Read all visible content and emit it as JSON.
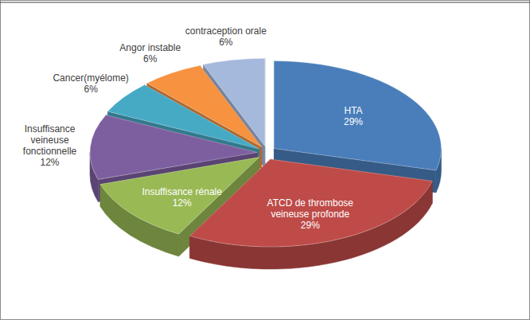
{
  "chart_data": {
    "type": "pie",
    "categories": [
      "HTA",
      "ATCD de thrombose veineuse profonde",
      "Insuffisance rénale",
      "Insuffisance veineuse fonctionnelle",
      "Cancer(myélome)",
      "Angor instable",
      "contraception orale"
    ],
    "values": [
      29,
      29,
      12,
      12,
      6,
      6,
      6
    ],
    "value_labels": [
      "29%",
      "29%",
      "12%",
      "12%",
      "6%",
      "6%",
      "6%"
    ],
    "colors": [
      "#4a7ebb",
      "#be4b48",
      "#98b954",
      "#7d5fa0",
      "#46aac5",
      "#f69240",
      "#a5b9dc"
    ],
    "data_labels": true
  }
}
